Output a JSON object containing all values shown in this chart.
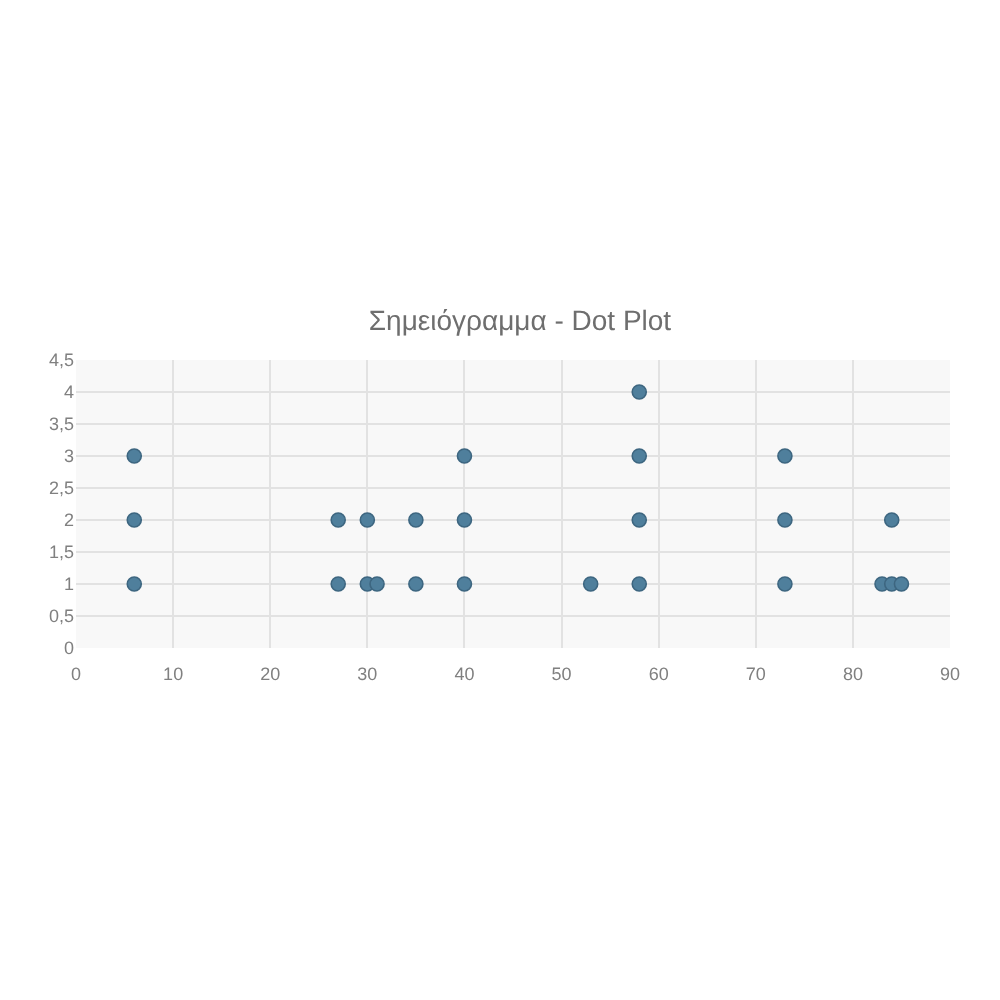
{
  "chart_data": {
    "type": "scatter",
    "title": "Σημειόγραμμα - Dot Plot",
    "x": [
      6,
      6,
      6,
      27,
      27,
      30,
      30,
      31,
      35,
      35,
      40,
      40,
      40,
      53,
      58,
      58,
      58,
      58,
      73,
      73,
      73,
      83,
      84,
      84,
      85
    ],
    "values": [
      1,
      2,
      3,
      1,
      2,
      1,
      2,
      1,
      1,
      2,
      1,
      2,
      3,
      1,
      1,
      2,
      3,
      4,
      1,
      2,
      3,
      1,
      1,
      2,
      1
    ],
    "color": "#4f7f9c",
    "marker": "circle",
    "grid": true,
    "xlim": [
      0,
      90
    ],
    "xticks": [
      0,
      10,
      20,
      30,
      40,
      50,
      60,
      70,
      80,
      90
    ],
    "ylim": [
      0,
      4.5
    ],
    "yticks": [
      0,
      {
        "value": 0.5,
        "label": "0,5"
      },
      1,
      {
        "value": 1.5,
        "label": "1,5"
      },
      2,
      {
        "value": 2.5,
        "label": "2,5"
      },
      3,
      {
        "value": 3.5,
        "label": "3,5"
      },
      4,
      {
        "value": 4.5,
        "label": "4,5"
      }
    ]
  }
}
